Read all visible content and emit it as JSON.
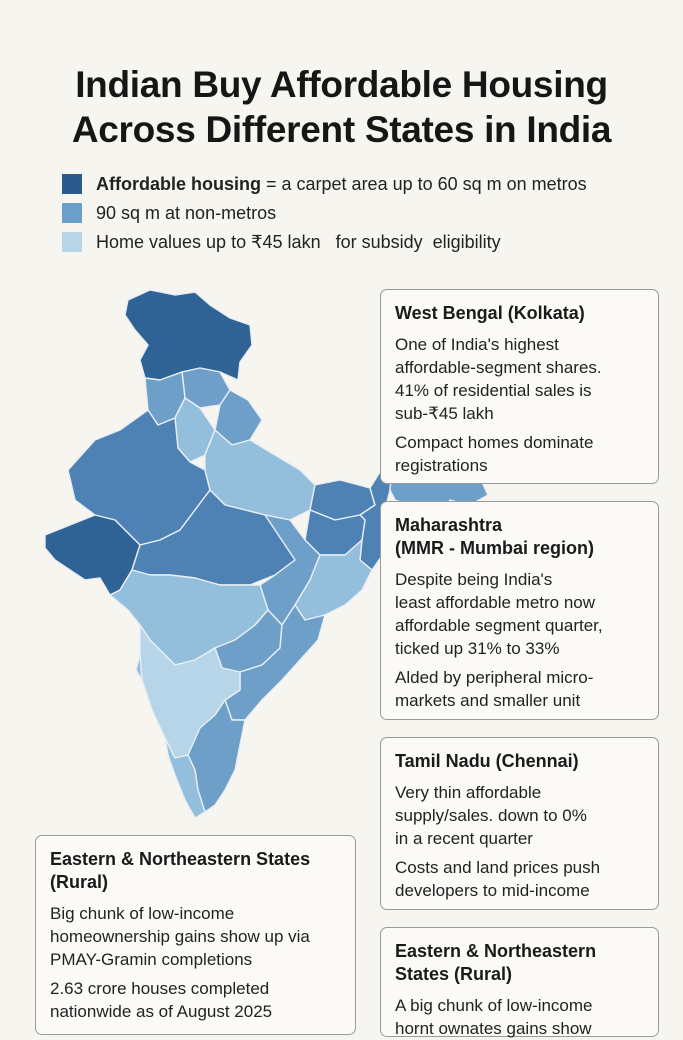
{
  "title": {
    "line1": "Indian Buy Affordable Housing",
    "line2": "Across Different States in India"
  },
  "legend": [
    {
      "lead": "Affordable housing",
      "text": " = a carpet area up to 60 sq m on metros",
      "color": "#2b5b8c"
    },
    {
      "lead": "",
      "text": "90 sq m at non-metros",
      "color": "#6b9ec8"
    },
    {
      "lead": "",
      "text": "Home values up to ₹45 lakn   for subsidy  eligibility",
      "color": "#b9d6e8"
    }
  ],
  "cards": {
    "west_bengal": {
      "title": "West Bengal (Kolkata)",
      "p1": [
        "One of India's highest",
        "affordable-segment shares.",
        "41% of residential sales is",
        "sub-₹45 lakh"
      ],
      "p2": [
        "Compact homes dominate",
        "registrations"
      ]
    },
    "maharashtra": {
      "title1": "Maharashtra",
      "title2": "(MMR - Mumbai region)",
      "p1": [
        "Despite being India's",
        "least affordable metro now",
        "affordable segment quarter,",
        "ticked up 31% to 33%"
      ],
      "p2": [
        "Alded by peripheral micro-",
        "markets and smaller unit"
      ]
    },
    "tamil_nadu": {
      "title": "Tamil Nadu (Chennai)",
      "p1": [
        "Very thin affordable",
        "supply/sales. down to 0%",
        "in a recent quarter"
      ],
      "p2": [
        "Costs and land prices  push",
        "developers to mid-income"
      ]
    },
    "eastern_left": {
      "title1": "Eastern & Northeastern States",
      "title2": "(Rural)",
      "p1": [
        "Big chunk of low-income",
        "homeownership gains show up via",
        "PMAY-Gramin completions"
      ],
      "p2": [
        "2.63 crore houses completed",
        "nationwide as of August 2025"
      ]
    },
    "eastern_right": {
      "title1": "Eastern & Northeastern",
      "title2": "States (Rural)",
      "p1": [
        "A big chunk of low-income",
        "hornt ownates  gains show"
      ]
    }
  },
  "colors": {
    "dark": "#2f6396",
    "mid": "#4f82b4",
    "midlight": "#6e9fc9",
    "light": "#94bfdc",
    "pale": "#b7d5e8"
  }
}
